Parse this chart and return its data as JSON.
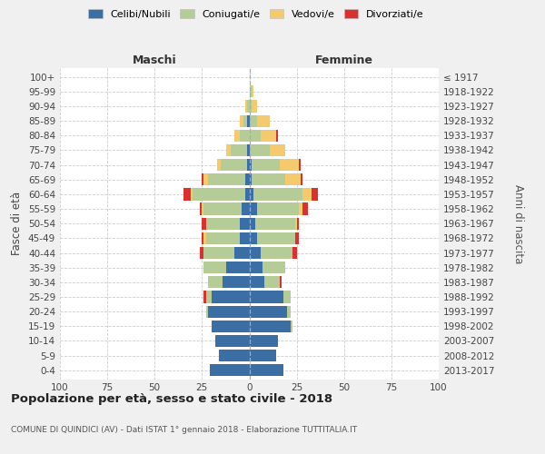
{
  "age_groups": [
    "0-4",
    "5-9",
    "10-14",
    "15-19",
    "20-24",
    "25-29",
    "30-34",
    "35-39",
    "40-44",
    "45-49",
    "50-54",
    "55-59",
    "60-64",
    "65-69",
    "70-74",
    "75-79",
    "80-84",
    "85-89",
    "90-94",
    "95-99",
    "100+"
  ],
  "birth_years": [
    "2013-2017",
    "2008-2012",
    "2003-2007",
    "1998-2002",
    "1993-1997",
    "1988-1992",
    "1983-1987",
    "1978-1982",
    "1973-1977",
    "1968-1972",
    "1963-1967",
    "1958-1962",
    "1953-1957",
    "1948-1952",
    "1943-1947",
    "1938-1942",
    "1933-1937",
    "1928-1932",
    "1923-1927",
    "1918-1922",
    "≤ 1917"
  ],
  "males_celibi": [
    21,
    16,
    18,
    20,
    22,
    20,
    14,
    12,
    8,
    5,
    5,
    4,
    2,
    2,
    1,
    1,
    0,
    1,
    0,
    0,
    0
  ],
  "males_coniugati": [
    0,
    0,
    0,
    0,
    1,
    3,
    8,
    12,
    16,
    18,
    18,
    20,
    28,
    20,
    14,
    9,
    5,
    2,
    1,
    0,
    0
  ],
  "males_vedovi": [
    0,
    0,
    0,
    0,
    0,
    0,
    0,
    0,
    0,
    1,
    0,
    1,
    1,
    2,
    2,
    2,
    3,
    2,
    1,
    0,
    0
  ],
  "males_divorziati": [
    0,
    0,
    0,
    0,
    0,
    1,
    0,
    0,
    2,
    1,
    2,
    1,
    4,
    1,
    0,
    0,
    0,
    0,
    0,
    0,
    0
  ],
  "females_nubili": [
    18,
    14,
    15,
    22,
    20,
    18,
    8,
    7,
    6,
    4,
    3,
    4,
    2,
    1,
    1,
    0,
    0,
    0,
    0,
    0,
    0
  ],
  "females_coniugate": [
    0,
    0,
    0,
    1,
    2,
    4,
    8,
    12,
    17,
    20,
    21,
    22,
    26,
    18,
    15,
    11,
    6,
    4,
    1,
    1,
    0
  ],
  "females_vedove": [
    0,
    0,
    0,
    0,
    0,
    0,
    0,
    0,
    0,
    0,
    1,
    2,
    5,
    8,
    10,
    8,
    8,
    7,
    3,
    1,
    0
  ],
  "females_divorziate": [
    0,
    0,
    0,
    0,
    0,
    0,
    1,
    0,
    2,
    2,
    1,
    3,
    3,
    1,
    1,
    0,
    1,
    0,
    0,
    0,
    0
  ],
  "colors_celibi": "#3a6ea5",
  "colors_coniugati": "#b5cc96",
  "colors_vedovi": "#f5c96e",
  "colors_divorziati": "#d93030",
  "xlim": 100,
  "title": "Popolazione per età, sesso e stato civile - 2018",
  "subtitle": "COMUNE DI QUINDICI (AV) - Dati ISTAT 1° gennaio 2018 - Elaborazione TUTTITALIA.IT",
  "ylabel_left": "Fasce di età",
  "ylabel_right": "Anni di nascita",
  "label_maschi": "Maschi",
  "label_femmine": "Femmine",
  "legend_labels": [
    "Celibi/Nubili",
    "Coniugati/e",
    "Vedovi/e",
    "Divorziati/e"
  ],
  "bg_color": "#f0f0f0",
  "plot_bg_color": "#ffffff"
}
